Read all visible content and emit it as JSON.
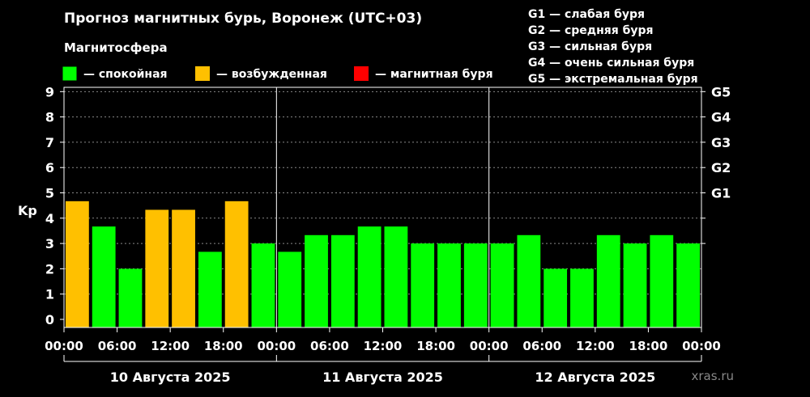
{
  "chart_data": {
    "type": "bar",
    "title": "Прогноз магнитных бурь, Воронеж (UTC+03)",
    "legend_title": "Магнитосфера",
    "legend": [
      {
        "label": "— спокойная",
        "color": "#00ff00"
      },
      {
        "label": "— возбужденная",
        "color": "#ffc000"
      },
      {
        "label": "— магнитная буря",
        "color": "#ff0000"
      }
    ],
    "storm_legend": [
      "G1 — слабая буря",
      "G2 — средняя буря",
      "G3 — сильная буря",
      "G4 — очень сильная буря",
      "G5 — экстремальная буря"
    ],
    "ylabel": "Kp",
    "ylim": [
      0,
      9.5
    ],
    "y_ticks": [
      "0",
      "1",
      "2",
      "3",
      "4",
      "5",
      "6",
      "7",
      "8",
      "9"
    ],
    "right_ticks": [
      {
        "value": 5,
        "label": "G1"
      },
      {
        "value": 6,
        "label": "G2"
      },
      {
        "value": 7,
        "label": "G3"
      },
      {
        "value": 8,
        "label": "G4"
      },
      {
        "value": 9,
        "label": "G5"
      }
    ],
    "x_tick_labels": [
      "00:00",
      "06:00",
      "12:00",
      "18:00",
      "00:00",
      "06:00",
      "12:00",
      "18:00",
      "00:00",
      "06:00",
      "12:00",
      "18:00",
      "00:00"
    ],
    "days": [
      "10 Августа 2025",
      "11 Августа 2025",
      "12 Августа 2025"
    ],
    "values": [
      4.67,
      3.67,
      2.0,
      4.33,
      4.33,
      2.67,
      4.67,
      3.0,
      2.67,
      3.33,
      3.33,
      3.67,
      3.67,
      3.0,
      3.0,
      3.0,
      3.0,
      3.33,
      2.0,
      2.0,
      3.33,
      3.0,
      3.33,
      3.0
    ],
    "colors": [
      "#ffc000",
      "#00ff00",
      "#00ff00",
      "#ffc000",
      "#ffc000",
      "#00ff00",
      "#ffc000",
      "#00ff00",
      "#00ff00",
      "#00ff00",
      "#00ff00",
      "#00ff00",
      "#00ff00",
      "#00ff00",
      "#00ff00",
      "#00ff00",
      "#00ff00",
      "#00ff00",
      "#00ff00",
      "#00ff00",
      "#00ff00",
      "#00ff00",
      "#00ff00",
      "#00ff00"
    ],
    "grid": true,
    "watermark": "xras.ru"
  }
}
